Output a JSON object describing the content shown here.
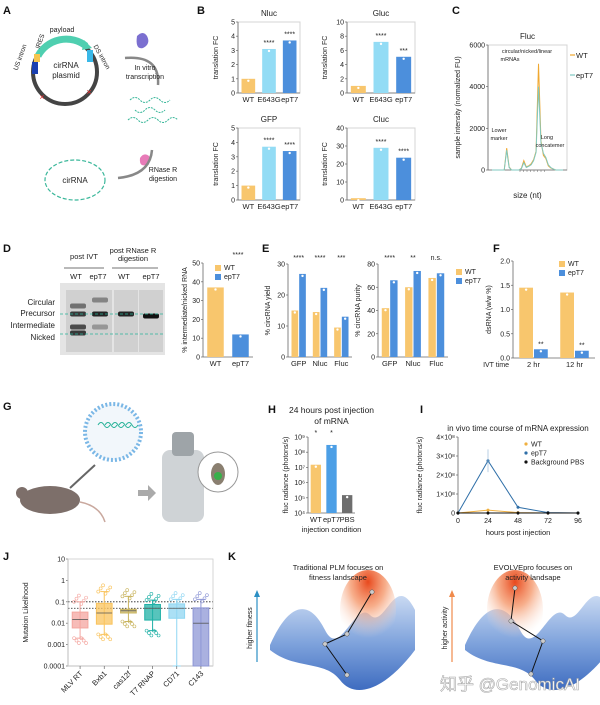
{
  "panel_labels": [
    "A",
    "B",
    "C",
    "D",
    "E",
    "F",
    "G",
    "H",
    "I",
    "J",
    "K"
  ],
  "diagram_a": {
    "payload": "payload",
    "ires": "IRES",
    "us_intron": "US intron",
    "ds_intron": "DS intron",
    "plasmid": [
      "cirRNA",
      "plasmid"
    ],
    "ivt": [
      "In vitro",
      "transcription"
    ],
    "rnase": [
      "RNase R",
      "digestion"
    ],
    "product": "cirRNA"
  },
  "gel_d": {
    "header_ivt": "post IVT",
    "header_rnase": [
      "post RNase R",
      "digestion"
    ],
    "lanes": [
      "WT",
      "epT7",
      "WT",
      "epT7"
    ],
    "bands": [
      "Circular",
      "Precursor",
      "Intermediate",
      "Nicked"
    ]
  },
  "illustration_k": {
    "left_title": [
      "Traditional PLM focuses on",
      "fitness landscape"
    ],
    "left_axis": "higher fitness",
    "right_title": [
      "EVOLVEpro focuses on",
      "activity landsape"
    ],
    "right_axis": "higher activity"
  },
  "watermark": "知乎 @GenomicAI",
  "chart_data": [
    {
      "type": "bar",
      "title": "Nluc",
      "ylabel": "translation FC",
      "categories": [
        "WT",
        "E643G",
        "epT7"
      ],
      "values": [
        1.0,
        3.1,
        3.7
      ],
      "colors": [
        "#f8c66d",
        "#93dcf5",
        "#4c8fdc"
      ],
      "ylim": [
        0,
        5
      ],
      "yticks": [
        "0",
        "1",
        "2",
        "3",
        "4",
        "5"
      ],
      "ytick_values": [
        0,
        1,
        2,
        3,
        4,
        5
      ],
      "significance": [
        "",
        "****",
        "****"
      ]
    },
    {
      "type": "bar",
      "title": "Gluc",
      "ylabel": "translation FC",
      "categories": [
        "WT",
        "E643G",
        "epT7"
      ],
      "values": [
        1.0,
        7.2,
        5.1
      ],
      "colors": [
        "#f8c66d",
        "#93dcf5",
        "#4c8fdc"
      ],
      "ylim": [
        0,
        10
      ],
      "yticks": [
        "0",
        "2",
        "4",
        "6",
        "8",
        "10"
      ],
      "ytick_values": [
        0,
        2,
        4,
        6,
        8,
        10
      ],
      "significance": [
        "",
        "****",
        "***"
      ]
    },
    {
      "type": "bar",
      "title": "GFP",
      "ylabel": "translation FC",
      "categories": [
        "WT",
        "E643G",
        "epT7"
      ],
      "values": [
        1.0,
        3.7,
        3.4
      ],
      "colors": [
        "#f8c66d",
        "#93dcf5",
        "#4c8fdc"
      ],
      "ylim": [
        0,
        5
      ],
      "yticks": [
        "0",
        "1",
        "2",
        "3",
        "4",
        "5"
      ],
      "ytick_values": [
        0,
        1,
        2,
        3,
        4,
        5
      ],
      "significance": [
        "",
        "****",
        "****"
      ]
    },
    {
      "type": "bar",
      "title": "Cluc",
      "ylabel": "translation FC",
      "categories": [
        "WT",
        "E643G",
        "epT7"
      ],
      "values": [
        1.0,
        29,
        23.5
      ],
      "colors": [
        "#f8c66d",
        "#93dcf5",
        "#4c8fdc"
      ],
      "ylim": [
        0,
        40
      ],
      "yticks": [
        "0",
        "10",
        "20",
        "30",
        "40"
      ],
      "ytick_values": [
        0,
        10,
        20,
        30,
        40
      ],
      "significance": [
        "",
        "****",
        "****"
      ]
    },
    {
      "type": "line",
      "title": "Fluc",
      "ylabel": "sample intensity (normalized FU)",
      "xlabel": "size (nt)",
      "ylim": [
        0,
        6000
      ],
      "yticks": [
        "0",
        "2000",
        "4000",
        "6000"
      ],
      "ytick_values": [
        0,
        2000,
        4000,
        6000
      ],
      "legend": "right",
      "series": [
        {
          "name": "WT",
          "color": "#f0a830",
          "values": [
            0,
            0,
            0,
            0,
            0,
            0,
            1050,
            150,
            0,
            0,
            0,
            0,
            80,
            450,
            150,
            200,
            300,
            500,
            900,
            5100,
            1400,
            700,
            550,
            200,
            100,
            50,
            0,
            0,
            0,
            0
          ]
        },
        {
          "name": "epT7",
          "color": "#7fc8c0",
          "values": [
            0,
            0,
            0,
            0,
            0,
            0,
            950,
            120,
            0,
            0,
            0,
            0,
            60,
            350,
            120,
            180,
            250,
            450,
            850,
            4000,
            1300,
            800,
            600,
            250,
            120,
            50,
            0,
            0,
            0,
            0
          ]
        }
      ],
      "annotations": [
        [
          "Lower",
          "marker"
        ],
        [
          "circular/nicked/linear",
          "mRNAs"
        ],
        [
          "Long",
          "concatemer"
        ]
      ]
    },
    {
      "type": "bar",
      "ylabel": "% intermediate/nicked RNA",
      "categories": [
        "WT",
        "epT7"
      ],
      "values": [
        37,
        12
      ],
      "colors": [
        "#f8c66d",
        "#4c8fdc"
      ],
      "ylim": [
        0,
        50
      ],
      "yticks": [
        "0",
        "10",
        "20",
        "30",
        "40",
        "50"
      ],
      "ytick_values": [
        0,
        10,
        20,
        30,
        40,
        50
      ],
      "significance_overall": "****",
      "legend": "top-right"
    },
    {
      "type": "bar",
      "ylabel": "% circRNA yield",
      "categories": [
        "GFP",
        "Nluc",
        "Fluc"
      ],
      "ylim": [
        0,
        30
      ],
      "yticks": [
        "0",
        "10",
        "20",
        "30"
      ],
      "ytick_values": [
        0,
        10,
        20,
        30
      ],
      "significance": [
        "****",
        "****",
        "***"
      ],
      "series": [
        {
          "name": "WT",
          "color": "#f8c66d",
          "values": [
            15,
            14.5,
            9.5
          ]
        },
        {
          "name": "epT7",
          "color": "#4c8fdc",
          "values": [
            26.8,
            22.3,
            13
          ]
        }
      ]
    },
    {
      "type": "bar",
      "ylabel": "% circRNA purity",
      "categories": [
        "GFP",
        "Nluc",
        "Fluc"
      ],
      "ylim": [
        0,
        80
      ],
      "yticks": [
        "0",
        "20",
        "40",
        "60",
        "80"
      ],
      "ytick_values": [
        0,
        20,
        40,
        60,
        80
      ],
      "significance": [
        "****",
        "**",
        "n.s."
      ],
      "legend": "right",
      "series": [
        {
          "name": "WT",
          "color": "#f8c66d",
          "values": [
            42,
            60,
            68
          ]
        },
        {
          "name": "epT7",
          "color": "#4c8fdc",
          "values": [
            66,
            74,
            72
          ]
        }
      ]
    },
    {
      "type": "bar",
      "ylabel": "dsRNA (w/w %)",
      "xlabel": "IVT time",
      "categories": [
        "2 hr",
        "12 hr"
      ],
      "ylim": [
        0,
        2
      ],
      "yticks": [
        "0.0",
        "0.5",
        "1.0",
        "1.5",
        "2.0"
      ],
      "ytick_values": [
        0,
        0.5,
        1,
        1.5,
        2
      ],
      "legend": "top-right",
      "series": [
        {
          "name": "WT",
          "color": "#f8c66d",
          "values": [
            1.45,
            1.35
          ]
        },
        {
          "name": "epT7",
          "color": "#4c8fdc",
          "values": [
            0.18,
            0.15
          ],
          "significance": [
            "**",
            "**"
          ]
        }
      ]
    },
    {
      "type": "bar",
      "title": [
        "24 hours post injection",
        "of mRNA"
      ],
      "ylabel": "fluc radiance (photons/s)",
      "xlabel": "injection condition",
      "yscale": "log",
      "categories": [
        "WT",
        "epT7",
        "PBS"
      ],
      "values": [
        15000000,
        300000000,
        150000
      ],
      "colors": [
        "#f8c66d",
        "#4c9fe6",
        "#6e6e6e"
      ],
      "ylim": [
        10000,
        1000000000
      ],
      "yticks": [
        "10⁴",
        "10⁵",
        "10⁶",
        "10⁷",
        "10⁸",
        "10⁹"
      ],
      "ytick_values": [
        10000,
        100000,
        1000000,
        10000000,
        100000000,
        1000000000
      ],
      "significance": [
        "*",
        "*",
        ""
      ]
    },
    {
      "type": "line",
      "title": "in vivo time course of mRNA expression",
      "ylabel": "fluc radiance (photons/s)",
      "xlabel": "hours post injection",
      "x": [
        0,
        24,
        48,
        72,
        96
      ],
      "xticks": [
        "0",
        "24",
        "48",
        "72",
        "96"
      ],
      "xlim": [
        0,
        96
      ],
      "ylim": [
        0,
        400000000
      ],
      "yticks": [
        "0",
        "1×10⁸",
        "2×10⁸",
        "3×10⁸",
        "4×10⁸"
      ],
      "ytick_values": [
        0,
        100000000,
        200000000,
        300000000,
        400000000
      ],
      "legend": "top-right",
      "series": [
        {
          "name": "WT",
          "color": "#f0b040",
          "values": [
            0,
            15000000,
            2000000,
            0,
            0
          ]
        },
        {
          "name": "epT7",
          "color": "#2f6fa8",
          "values": [
            0,
            275000000,
            30000000,
            2000000,
            0
          ]
        },
        {
          "name": "Background PBS",
          "color": "#111111",
          "values": [
            0,
            0,
            0,
            0,
            0
          ]
        }
      ]
    },
    {
      "type": "box",
      "ylabel": "Mutation Likelihood",
      "yscale": "log",
      "ylim": [
        0.0001,
        10
      ],
      "yticks": [
        "0.0001",
        "0.001",
        "0.01",
        "0.1",
        "1",
        "10"
      ],
      "ytick_values": [
        0.0001,
        0.001,
        0.01,
        0.1,
        1,
        10
      ],
      "reference_lines": [
        0.1,
        0.05
      ],
      "categories": [
        "MLV RT",
        "Bxb1",
        "cas12f",
        "T7 RNAP",
        "CD71",
        "C143"
      ],
      "colors": [
        "#f4a6a0",
        "#f9c35c",
        "#c9b45e",
        "#1fb0a6",
        "#8fd6f2",
        "#8e97d6"
      ],
      "boxes": [
        {
          "low": 0.002,
          "q1": 0.006,
          "median": 0.015,
          "q3": 0.033,
          "high": 0.1
        },
        {
          "low": 0.003,
          "q1": 0.009,
          "median": 0.03,
          "q3": 0.085,
          "high": 0.3
        },
        {
          "low": 0.012,
          "q1": 0.03,
          "median": 0.038,
          "q3": 0.045,
          "high": 0.18
        },
        {
          "low": 0.0045,
          "q1": 0.014,
          "median": 0.05,
          "q3": 0.075,
          "high": 0.12
        },
        {
          "low": 0.0001,
          "q1": 0.017,
          "median": 0.05,
          "q3": 0.08,
          "high": 0.13
        },
        {
          "low": 0.0001,
          "q1": 0.0001,
          "median": 0.01,
          "q3": 0.052,
          "high": 0.13
        }
      ]
    }
  ]
}
